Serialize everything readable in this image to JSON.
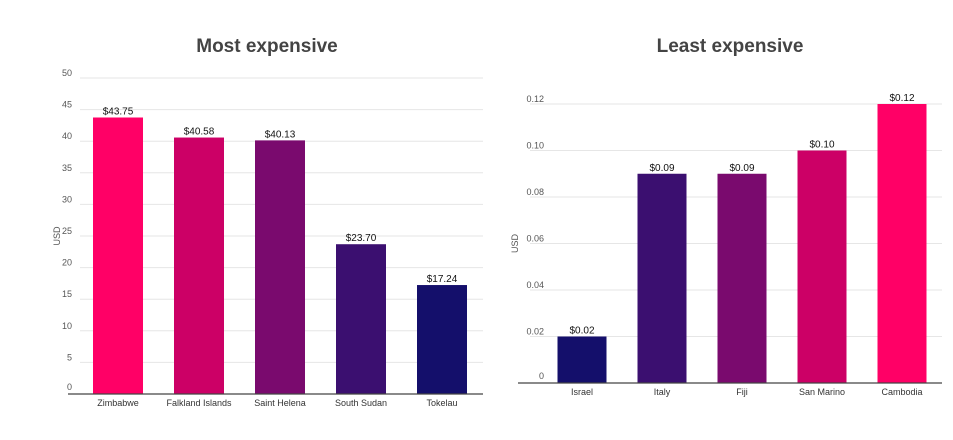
{
  "chart_data": [
    {
      "type": "bar",
      "title": "Most expensive",
      "ylabel": "USD",
      "xlabel": "",
      "ylim": [
        0,
        50
      ],
      "yticks": [
        0,
        5,
        10,
        15,
        20,
        25,
        30,
        35,
        40,
        45,
        50
      ],
      "ytick_labels": [
        "0",
        "5",
        "10",
        "15",
        "20",
        "25",
        "30",
        "35",
        "40",
        "45",
        "50"
      ],
      "grid": true,
      "categories": [
        "Zimbabwe",
        "Falkland Islands",
        "Saint Helena",
        "South Sudan",
        "Tokelau"
      ],
      "values": [
        43.75,
        40.58,
        40.13,
        23.7,
        17.24
      ],
      "data_labels": [
        "$43.75",
        "$40.58",
        "$40.13",
        "$23.70",
        "$17.24"
      ],
      "colors": [
        "#ff0066",
        "#cc0066",
        "#7a0a6e",
        "#3b0f70",
        "#140f6b"
      ]
    },
    {
      "type": "bar",
      "title": "Least expensive",
      "ylabel": "USD",
      "xlabel": "",
      "ylim": [
        0,
        0.12
      ],
      "yticks": [
        0,
        0.02,
        0.04,
        0.06,
        0.08,
        0.1,
        0.12
      ],
      "ytick_labels": [
        "0",
        "0.02",
        "0.04",
        "0.06",
        "0.08",
        "0.10",
        "0.12"
      ],
      "grid": true,
      "categories": [
        "Israel",
        "Italy",
        "Fiji",
        "San Marino",
        "Cambodia"
      ],
      "values": [
        0.02,
        0.09,
        0.09,
        0.1,
        0.12
      ],
      "data_labels": [
        "$0.02",
        "$0.09",
        "$0.09",
        "$0.10",
        "$0.12"
      ],
      "colors": [
        "#140f6b",
        "#3b0f70",
        "#7a0a6e",
        "#cc0066",
        "#ff0066"
      ]
    }
  ]
}
